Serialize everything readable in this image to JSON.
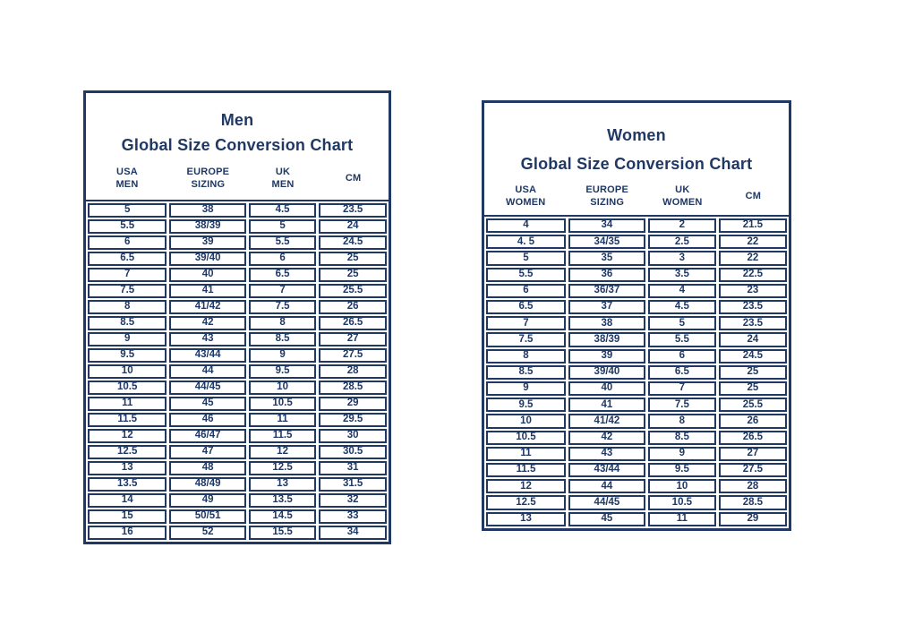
{
  "colors": {
    "navy": "#1f3864",
    "background": "#ffffff"
  },
  "chart_data": [
    {
      "type": "table",
      "id": "men",
      "title_line1": "Men",
      "title_line2": "Global Size Conversion Chart",
      "columns": [
        "USA\nMEN",
        "EUROPE\nSIZING",
        "UK\nMEN",
        "CM"
      ],
      "rows": [
        [
          "5",
          "38",
          "4.5",
          "23.5"
        ],
        [
          "5.5",
          "38/39",
          "5",
          "24"
        ],
        [
          "6",
          "39",
          "5.5",
          "24.5"
        ],
        [
          "6.5",
          "39/40",
          "6",
          "25"
        ],
        [
          "7",
          "40",
          "6.5",
          "25"
        ],
        [
          "7.5",
          "41",
          "7",
          "25.5"
        ],
        [
          "8",
          "41/42",
          "7.5",
          "26"
        ],
        [
          "8.5",
          "42",
          "8",
          "26.5"
        ],
        [
          "9",
          "43",
          "8.5",
          "27"
        ],
        [
          "9.5",
          "43/44",
          "9",
          "27.5"
        ],
        [
          "10",
          "44",
          "9.5",
          "28"
        ],
        [
          "10.5",
          "44/45",
          "10",
          "28.5"
        ],
        [
          "11",
          "45",
          "10.5",
          "29"
        ],
        [
          "11.5",
          "46",
          "11",
          "29.5"
        ],
        [
          "12",
          "46/47",
          "11.5",
          "30"
        ],
        [
          "12.5",
          "47",
          "12",
          "30.5"
        ],
        [
          "13",
          "48",
          "12.5",
          "31"
        ],
        [
          "13.5",
          "48/49",
          "13",
          "31.5"
        ],
        [
          "14",
          "49",
          "13.5",
          "32"
        ],
        [
          "15",
          "50/51",
          "14.5",
          "33"
        ],
        [
          "16",
          "52",
          "15.5",
          "34"
        ]
      ]
    },
    {
      "type": "table",
      "id": "women",
      "title_line1": "Women",
      "title_line2": "Global Size Conversion Chart",
      "columns": [
        "USA\nWOMEN",
        "EUROPE\nSIZING",
        "UK\nWOMEN",
        "CM"
      ],
      "rows": [
        [
          "4",
          "34",
          "2",
          "21.5"
        ],
        [
          "4. 5",
          "34/35",
          "2.5",
          "22"
        ],
        [
          "5",
          "35",
          "3",
          "22"
        ],
        [
          "5.5",
          "36",
          "3.5",
          "22.5"
        ],
        [
          "6",
          "36/37",
          "4",
          "23"
        ],
        [
          "6.5",
          "37",
          "4.5",
          "23.5"
        ],
        [
          "7",
          "38",
          "5",
          "23.5"
        ],
        [
          "7.5",
          "38/39",
          "5.5",
          "24"
        ],
        [
          "8",
          "39",
          "6",
          "24.5"
        ],
        [
          "8.5",
          "39/40",
          "6.5",
          "25"
        ],
        [
          "9",
          "40",
          "7",
          "25"
        ],
        [
          "9.5",
          "41",
          "7.5",
          "25.5"
        ],
        [
          "10",
          "41/42",
          "8",
          "26"
        ],
        [
          "10.5",
          "42",
          "8.5",
          "26.5"
        ],
        [
          "11",
          "43",
          "9",
          "27"
        ],
        [
          "11.5",
          "43/44",
          "9.5",
          "27.5"
        ],
        [
          "12",
          "44",
          "10",
          "28"
        ],
        [
          "12.5",
          "44/45",
          "10.5",
          "28.5"
        ],
        [
          "13",
          "45",
          "11",
          "29"
        ]
      ]
    }
  ]
}
